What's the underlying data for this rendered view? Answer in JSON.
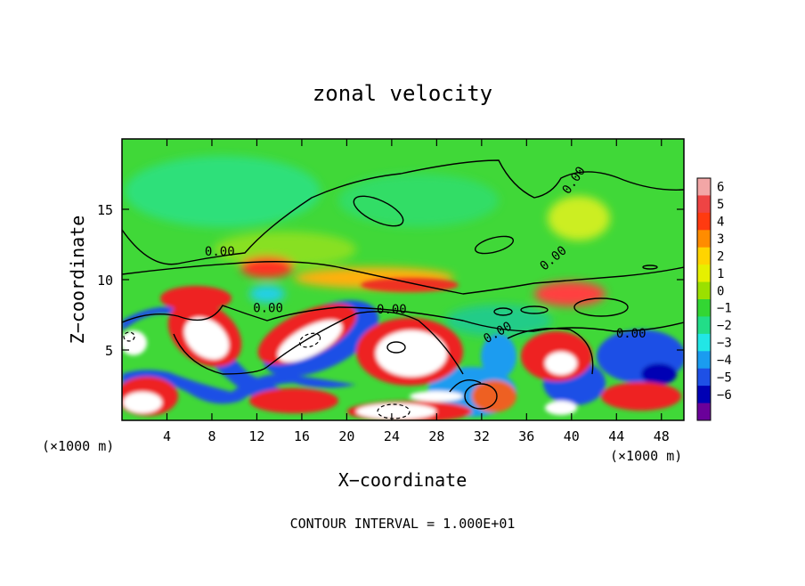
{
  "chart_data": {
    "type": "heatmap",
    "title": "zonal velocity",
    "xlabel": "X−coordinate",
    "ylabel": "Z−coordinate",
    "x_unit_left": "(×1000 m)",
    "x_unit_right": "(×1000 m)",
    "footer": "CONTOUR INTERVAL = 1.000E+01",
    "xlim": [
      0,
      50
    ],
    "ylim": [
      0,
      20
    ],
    "x_ticks": [
      "4",
      "8",
      "12",
      "16",
      "20",
      "24",
      "28",
      "32",
      "36",
      "40",
      "44",
      "48"
    ],
    "x_tick_values": [
      4,
      8,
      12,
      16,
      20,
      24,
      28,
      32,
      36,
      40,
      44,
      48
    ],
    "y_ticks": [
      "5",
      "10",
      "15"
    ],
    "y_tick_values": [
      5,
      10,
      15
    ],
    "colorbar": {
      "labels": [
        "6",
        "5",
        "4",
        "3",
        "2",
        "1",
        "0",
        "−1",
        "−2",
        "−3",
        "−4",
        "−5",
        "−6"
      ],
      "colors": [
        "#f2a6a6",
        "#ee4444",
        "#ff3a10",
        "#ff8c00",
        "#ffd400",
        "#e6f000",
        "#9be000",
        "#33d633",
        "#22dd88",
        "#22e6e6",
        "#1a9cf0",
        "#1e50e6",
        "#0000b4",
        "#6a009a"
      ]
    },
    "contour_labels": [
      "0.00",
      "0.00",
      "0.00",
      "0.00",
      "0.00",
      "0.00",
      "0.00"
    ],
    "contour_label_positions": [
      [
        40.5,
        16.9
      ],
      [
        8.7,
        11.7
      ],
      [
        13.0,
        7.7
      ],
      [
        24.0,
        7.6
      ],
      [
        33.6,
        6.0
      ],
      [
        38.6,
        11.3
      ],
      [
        45.3,
        5.9
      ]
    ]
  }
}
